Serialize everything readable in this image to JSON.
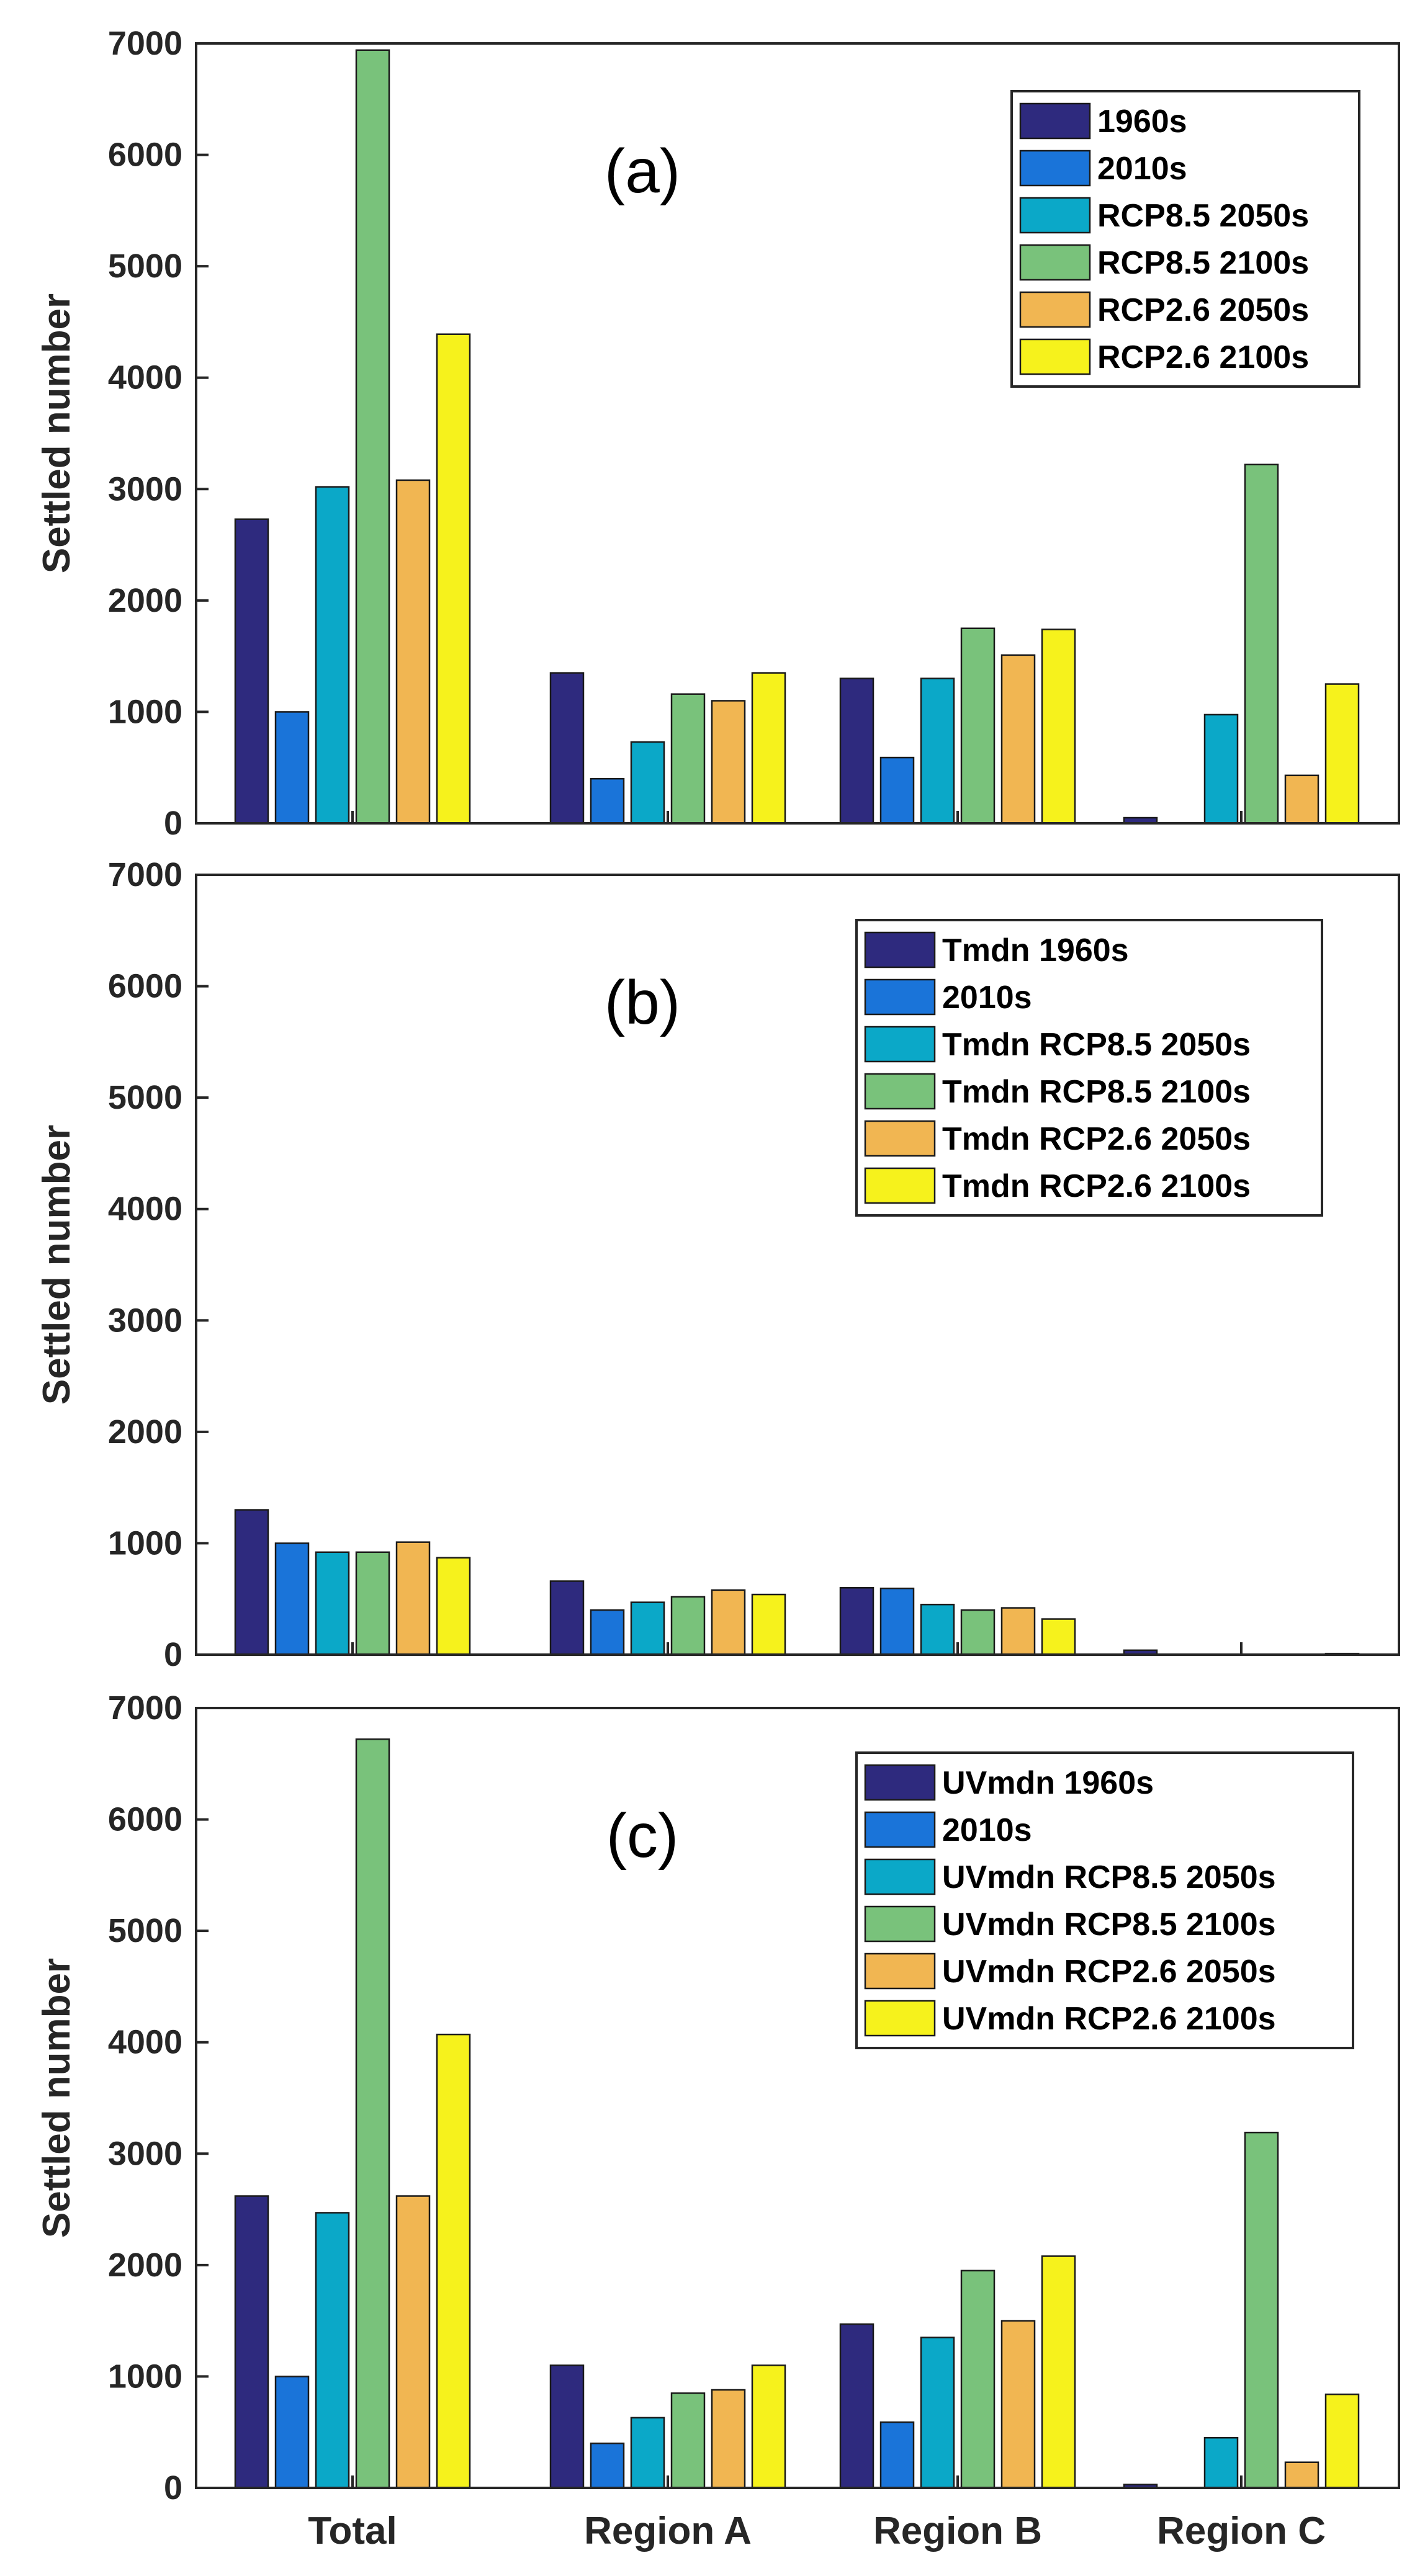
{
  "chart_data": [
    {
      "type": "bar",
      "panel_label": "(a)",
      "ylabel": "Settled number",
      "ylim": [
        0,
        7000
      ],
      "yticks": [
        0,
        1000,
        2000,
        3000,
        4000,
        5000,
        6000,
        7000
      ],
      "categories": [
        "Total",
        "Region A",
        "Region B",
        "Region C"
      ],
      "legend_position": "top-right",
      "series": [
        {
          "name": "1960s",
          "color": "#2e2a7e",
          "values": [
            2730,
            1350,
            1300,
            50
          ]
        },
        {
          "name": "2010s",
          "color": "#1a74d9",
          "values": [
            1000,
            400,
            590,
            0
          ]
        },
        {
          "name": "RCP8.5 2050s",
          "color": "#0ba8c8",
          "values": [
            3020,
            730,
            1300,
            975
          ]
        },
        {
          "name": "RCP8.5 2100s",
          "color": "#79c27b",
          "values": [
            6940,
            1160,
            1750,
            3220
          ]
        },
        {
          "name": "RCP2.6 2050s",
          "color": "#f1b652",
          "values": [
            3080,
            1100,
            1510,
            430
          ]
        },
        {
          "name": "RCP2.6 2100s",
          "color": "#f6f21c",
          "values": [
            4390,
            1350,
            1740,
            1250
          ]
        }
      ]
    },
    {
      "type": "bar",
      "panel_label": "(b)",
      "ylabel": "Settled number",
      "ylim": [
        0,
        7000
      ],
      "yticks": [
        0,
        1000,
        2000,
        3000,
        4000,
        5000,
        6000,
        7000
      ],
      "categories": [
        "Total",
        "Region A",
        "Region B",
        "Region C"
      ],
      "legend_position": "top-right",
      "series": [
        {
          "name": "Tmdn 1960s",
          "color": "#2e2a7e",
          "values": [
            1300,
            660,
            600,
            40
          ]
        },
        {
          "name": "2010s",
          "color": "#1a74d9",
          "values": [
            1000,
            400,
            595,
            0
          ]
        },
        {
          "name": "Tmdn RCP8.5 2050s",
          "color": "#0ba8c8",
          "values": [
            920,
            470,
            450,
            0
          ]
        },
        {
          "name": "Tmdn RCP8.5 2100s",
          "color": "#79c27b",
          "values": [
            920,
            520,
            400,
            0
          ]
        },
        {
          "name": "Tmdn RCP2.6 2050s",
          "color": "#f1b652",
          "values": [
            1010,
            580,
            420,
            0
          ]
        },
        {
          "name": "Tmdn RCP2.6 2100s",
          "color": "#f6f21c",
          "values": [
            870,
            540,
            320,
            10
          ]
        }
      ]
    },
    {
      "type": "bar",
      "panel_label": "(c)",
      "ylabel": "Settled number",
      "ylim": [
        0,
        7000
      ],
      "yticks": [
        0,
        1000,
        2000,
        3000,
        4000,
        5000,
        6000,
        7000
      ],
      "categories": [
        "Total",
        "Region A",
        "Region B",
        "Region C"
      ],
      "legend_position": "top-right",
      "series": [
        {
          "name": "UVmdn 1960s",
          "color": "#2e2a7e",
          "values": [
            2620,
            1100,
            1470,
            30
          ]
        },
        {
          "name": "2010s",
          "color": "#1a74d9",
          "values": [
            1000,
            400,
            590,
            0
          ]
        },
        {
          "name": "UVmdn RCP8.5 2050s",
          "color": "#0ba8c8",
          "values": [
            2470,
            630,
            1350,
            450
          ]
        },
        {
          "name": "UVmdn RCP8.5 2100s",
          "color": "#79c27b",
          "values": [
            6720,
            850,
            1950,
            3190
          ]
        },
        {
          "name": "UVmdn RCP2.6 2050s",
          "color": "#f1b652",
          "values": [
            2620,
            880,
            1500,
            230
          ]
        },
        {
          "name": "UVmdn RCP2.6 2100s",
          "color": "#f6f21c",
          "values": [
            4070,
            1100,
            2080,
            840
          ]
        }
      ]
    }
  ]
}
